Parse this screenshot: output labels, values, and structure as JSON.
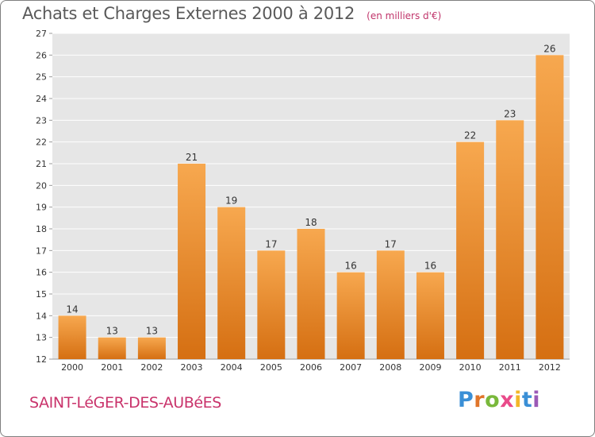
{
  "title": {
    "main": "Achats et Charges Externes 2000 à 2012",
    "unit": "(en milliers d'€)"
  },
  "footer": {
    "town": "SAINT-LéGER-DES-AUBéES",
    "logo": "Proxiti"
  },
  "colors": {
    "bar_top": "#f7a84f",
    "bar_bottom": "#d56f12",
    "plot_bg": "#e6e6e6",
    "grid": "#ffffff",
    "axis_text": "#333333",
    "title": "#5a5a5a",
    "accent": "#c9336b"
  },
  "chart_data": {
    "type": "bar",
    "title": "Achats et Charges Externes 2000 à 2012",
    "subtitle": "(en milliers d'€)",
    "xlabel": "",
    "ylabel": "",
    "categories": [
      "2000",
      "2001",
      "2002",
      "2003",
      "2004",
      "2005",
      "2006",
      "2007",
      "2008",
      "2009",
      "2010",
      "2011",
      "2012"
    ],
    "values": [
      14,
      13,
      13,
      21,
      19,
      17,
      18,
      16,
      17,
      16,
      22,
      23,
      26
    ],
    "ylim": [
      12,
      27
    ],
    "yticks": [
      12,
      13,
      14,
      15,
      16,
      17,
      18,
      19,
      20,
      21,
      22,
      23,
      24,
      25,
      26,
      27
    ],
    "grid": true,
    "legend": "none"
  }
}
